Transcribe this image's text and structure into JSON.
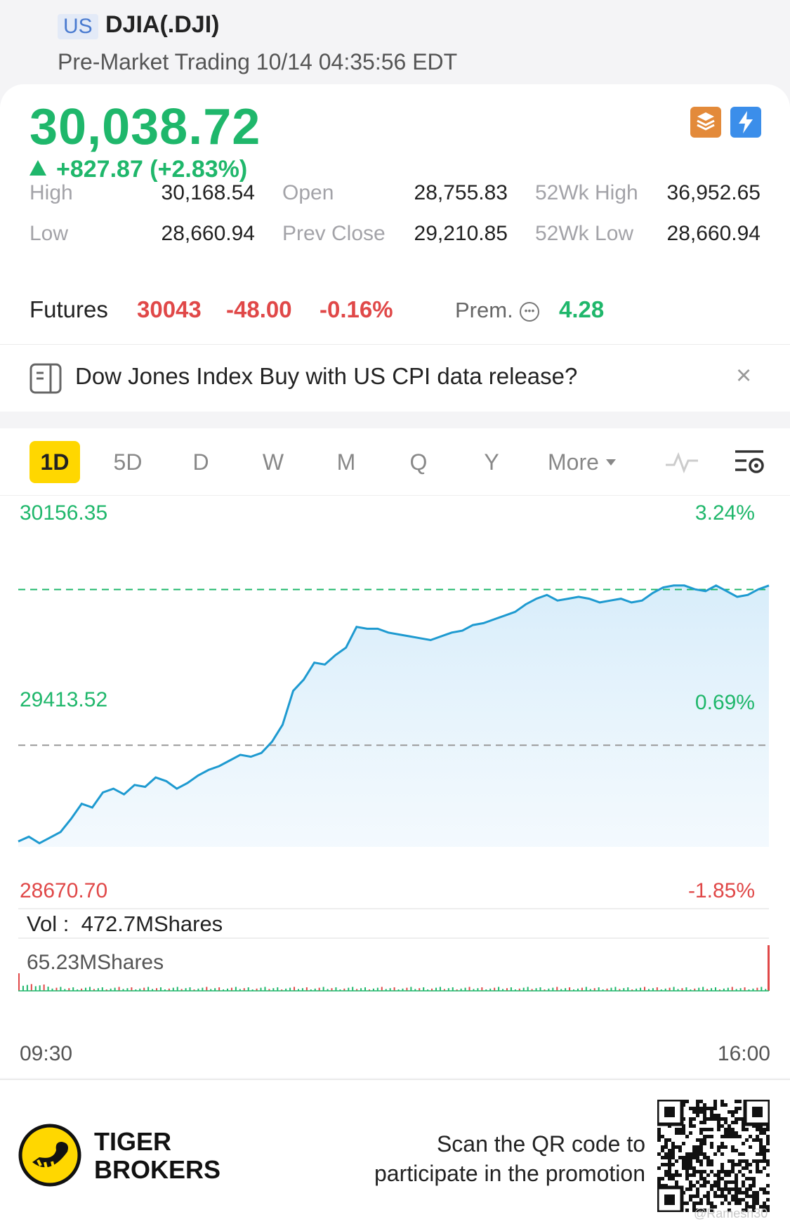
{
  "header": {
    "market": "US",
    "ticker": "DJIA(.DJI)",
    "session": "Pre-Market Trading 10/14 04:35:56 EDT"
  },
  "quote": {
    "price": "30,038.72",
    "change": "+827.87 (+2.83%)",
    "colors": {
      "up": "#1fb76b",
      "down": "#e04848"
    }
  },
  "stats": [
    {
      "label": "High",
      "value": "30,168.54"
    },
    {
      "label": "Open",
      "value": "28,755.83"
    },
    {
      "label": "52Wk High",
      "value": "36,952.65"
    },
    {
      "label": "Low",
      "value": "28,660.94"
    },
    {
      "label": "Prev Close",
      "value": "29,210.85"
    },
    {
      "label": "52Wk Low",
      "value": "28,660.94"
    }
  ],
  "futures": {
    "label": "Futures",
    "price": "30043",
    "change": "-48.00",
    "percent": "-0.16%",
    "prem_label": "Prem.",
    "prem_value": "4.28"
  },
  "banner": {
    "text": "Dow Jones Index Buy with US CPI data release?",
    "close": "×"
  },
  "tabs": {
    "items": [
      "1D",
      "5D",
      "D",
      "W",
      "M",
      "Q",
      "Y"
    ],
    "active": "1D",
    "more": "More"
  },
  "chart_data": {
    "type": "line",
    "y_left_labels": {
      "top": "30156.35",
      "mid": "29413.52",
      "bottom": "28670.70"
    },
    "y_right_labels": {
      "top": "3.24%",
      "mid": "0.69%",
      "bottom": "-1.85%"
    },
    "ylim": [
      28670.7,
      30156.35
    ],
    "prev_close": 29210.85,
    "open_reference": 30038.72,
    "x_start": "09:30",
    "x_end": "16:00",
    "series": [
      {
        "values": [
          28700,
          28725,
          28690,
          28720,
          28750,
          28820,
          28900,
          28880,
          28960,
          28980,
          28950,
          29000,
          28990,
          29040,
          29020,
          28980,
          29010,
          29050,
          29080,
          29100,
          29130,
          29160,
          29150,
          29170,
          29230,
          29320,
          29500,
          29560,
          29650,
          29640,
          29690,
          29730,
          29840,
          29830,
          29830,
          29810,
          29800,
          29790,
          29780,
          29770,
          29790,
          29810,
          29820,
          29850,
          29860,
          29880,
          29900,
          29920,
          29960,
          29990,
          30010,
          29980,
          29990,
          30000,
          29990,
          29970,
          29980,
          29990,
          29970,
          29980,
          30020,
          30050,
          30060,
          30060,
          30040,
          30030,
          30060,
          30030,
          30000,
          30010,
          30040,
          30060
        ]
      }
    ]
  },
  "volume": {
    "label": "Vol :",
    "total": "472.7MShares",
    "max_label": "65.23MShares"
  },
  "footer": {
    "brand_line1": "TIGER",
    "brand_line2": "BROKERS",
    "promo_line1": "Scan the QR code to",
    "promo_line2": "participate in the promotion",
    "watermark": "@Ramesh30"
  }
}
